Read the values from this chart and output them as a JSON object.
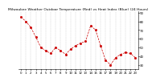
{
  "title": "Milwaukee Weather Outdoor Temperature (Red) vs Heat Index (Blue) (24 Hours)",
  "hours": [
    0,
    1,
    2,
    3,
    4,
    5,
    6,
    7,
    8,
    9,
    10,
    11,
    12,
    13,
    14,
    15,
    16,
    17,
    18,
    19,
    20,
    21,
    22,
    23
  ],
  "temperature": [
    85,
    80,
    73,
    62,
    50,
    46,
    43,
    50,
    46,
    42,
    48,
    52,
    55,
    57,
    75,
    70,
    52,
    35,
    30,
    38,
    42,
    44,
    43,
    38
  ],
  "line_color": "#cc0000",
  "bg_color": "#ffffff",
  "grid_color": "#aaaaaa",
  "ylim": [
    25,
    92
  ],
  "yticks": [
    30,
    40,
    50,
    60,
    70,
    80,
    90
  ],
  "ytick_labels": [
    "30",
    "40",
    "50",
    "60",
    "70",
    "80",
    "90"
  ],
  "title_fontsize": 3.2,
  "tick_fontsize": 2.8,
  "linewidth": 0.5,
  "markersize": 1.0
}
